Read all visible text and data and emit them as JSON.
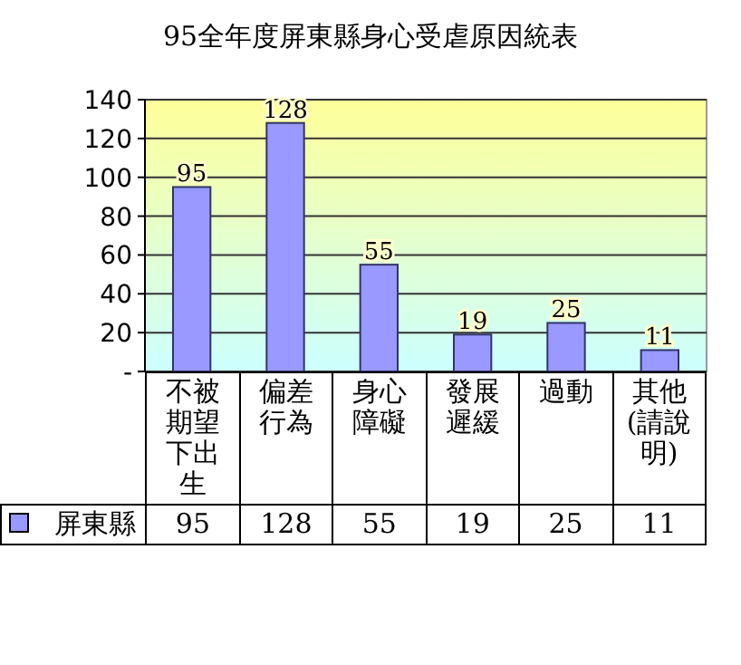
{
  "chart_data": {
    "type": "bar",
    "title": "95全年度屏東縣身心受虐原因統表",
    "categories": [
      "不被期望下出生",
      "偏差行為",
      "身心障礙",
      "發展遲緩",
      "過動",
      "其他(請說明)"
    ],
    "series": [
      {
        "name": "屏東縣",
        "color": "#9999ff",
        "values": [
          95,
          128,
          55,
          19,
          25,
          11
        ]
      }
    ],
    "annotations": [
      {
        "text": "95",
        "x": "不被期望下出生",
        "y": 95
      },
      {
        "text": "128",
        "x": "偏差行為",
        "y": 128
      },
      {
        "text": "55",
        "x": "身心障礙",
        "y": 55
      },
      {
        "text": "19",
        "x": "發展遲緩",
        "y": 19
      },
      {
        "text": "25",
        "x": "過動",
        "y": 25
      },
      {
        "text": "11",
        "x": "其他(請說明)",
        "y": 11
      }
    ],
    "ylim": [
      0,
      140
    ],
    "yticks": [
      {
        "value": 0,
        "label": "-"
      },
      20,
      40,
      60,
      80,
      100,
      120,
      140
    ],
    "grid": "y",
    "data_labels": true,
    "legend": "bottom"
  }
}
